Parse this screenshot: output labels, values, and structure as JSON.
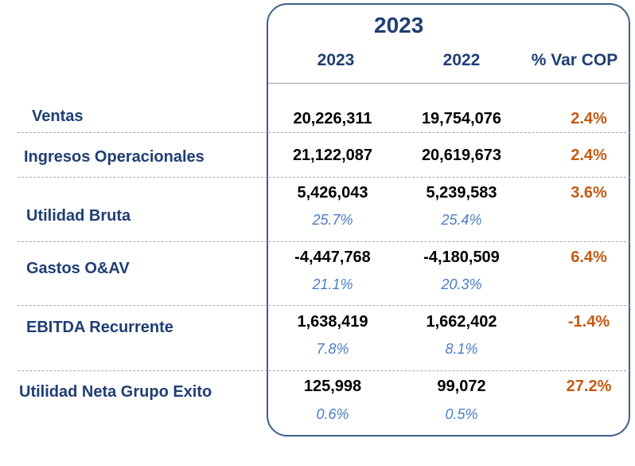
{
  "title": "2023",
  "columns": [
    "2023",
    "2022",
    "% Var COP"
  ],
  "rows": [
    {
      "label": "Ventas",
      "v2023": "20,226,311",
      "v2022": "19,754,076",
      "var": "2.4%"
    },
    {
      "label": "Ingresos Operacionales",
      "v2023": "21,122,087",
      "v2022": "20,619,673",
      "var": "2.4%"
    },
    {
      "label": "Utilidad Bruta",
      "v2023": "5,426,043",
      "v2022": "5,239,583",
      "var": "3.6%",
      "m2023": "25.7%",
      "m2022": "25.4%"
    },
    {
      "label": "Gastos O&AV",
      "v2023": "-4,447,768",
      "v2022": "-4,180,509",
      "var": "6.4%",
      "m2023": "21.1%",
      "m2022": "20.3%"
    },
    {
      "label": "EBITDA Recurrente",
      "v2023": "1,638,419",
      "v2022": "1,662,402",
      "var": "-1.4%",
      "m2023": "7.8%",
      "m2022": "8.1%"
    },
    {
      "label": "Utilidad Neta Grupo Exito",
      "v2023": "125,998",
      "v2022": "99,072",
      "var": "27.2%",
      "m2023": "0.6%",
      "m2022": "0.5%"
    }
  ]
}
